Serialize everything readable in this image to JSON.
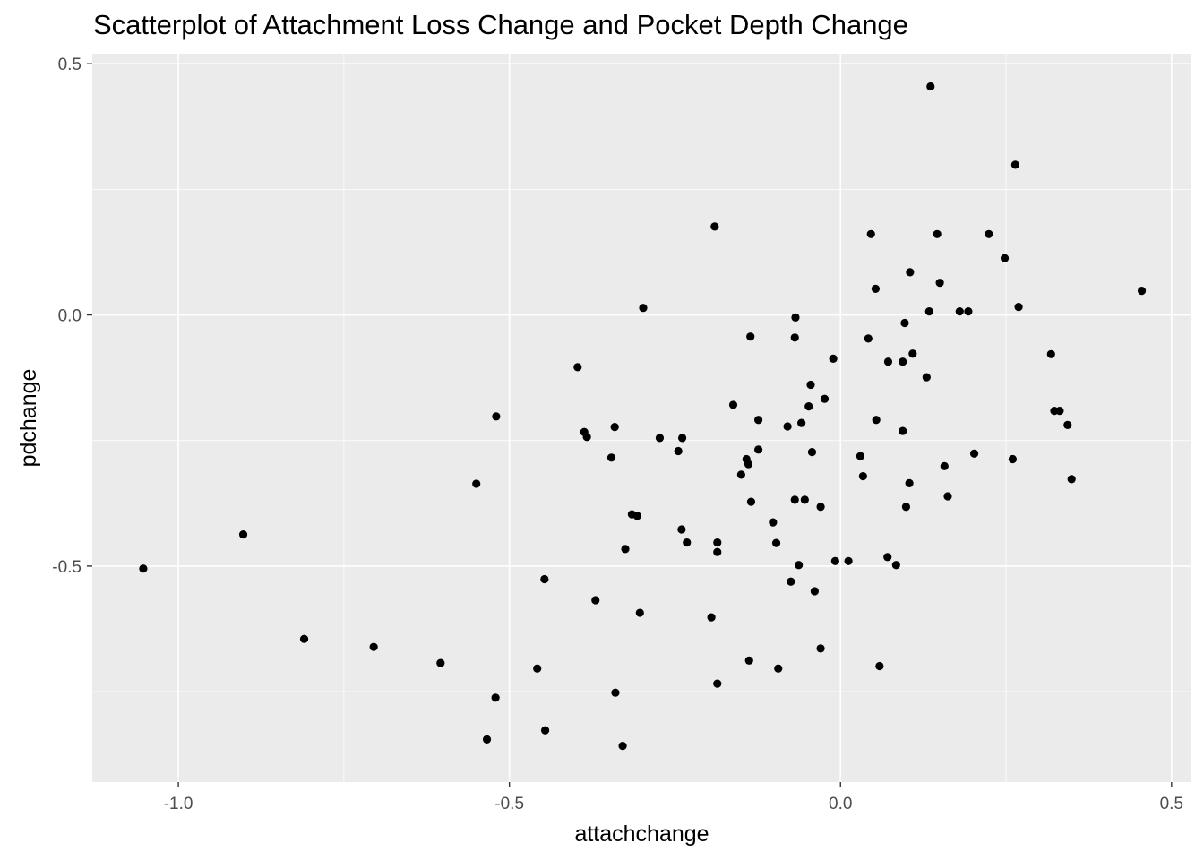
{
  "chart_data": {
    "type": "scatter",
    "title": "Scatterplot of Attachment Loss Change and Pocket Depth Change",
    "xlabel": "attachchange",
    "ylabel": "pdchange",
    "xlim": [
      -1.13,
      0.53
    ],
    "ylim": [
      -0.93,
      0.52
    ],
    "x_ticks": [
      -1.0,
      -0.5,
      0.0,
      0.5
    ],
    "x_tick_labels": [
      "-1.0",
      "-0.5",
      "0.0",
      "0.5"
    ],
    "y_ticks": [
      -0.5,
      0.0,
      0.5
    ],
    "y_tick_labels": [
      "-0.5",
      "0.0",
      "0.5"
    ],
    "grid": true,
    "point_color": "#000000",
    "panel_background": "#ebebeb",
    "grid_color": "#ffffff",
    "points": [
      [
        0.136,
        0.455
      ],
      [
        0.264,
        0.299
      ],
      [
        -0.19,
        0.176
      ],
      [
        0.046,
        0.161
      ],
      [
        0.146,
        0.161
      ],
      [
        0.224,
        0.161
      ],
      [
        0.248,
        0.113
      ],
      [
        0.105,
        0.085
      ],
      [
        0.15,
        0.064
      ],
      [
        0.053,
        0.052
      ],
      [
        0.455,
        0.048
      ],
      [
        0.269,
        0.016
      ],
      [
        -0.298,
        0.014
      ],
      [
        0.134,
        0.007
      ],
      [
        0.18,
        0.007
      ],
      [
        0.193,
        0.007
      ],
      [
        -0.068,
        -0.005
      ],
      [
        0.097,
        -0.016
      ],
      [
        -0.136,
        -0.043
      ],
      [
        -0.069,
        -0.045
      ],
      [
        0.042,
        -0.047
      ],
      [
        0.109,
        -0.077
      ],
      [
        0.318,
        -0.078
      ],
      [
        -0.011,
        -0.087
      ],
      [
        0.072,
        -0.093
      ],
      [
        0.094,
        -0.093
      ],
      [
        -0.397,
        -0.104
      ],
      [
        0.13,
        -0.124
      ],
      [
        -0.045,
        -0.139
      ],
      [
        -0.024,
        -0.167
      ],
      [
        -0.162,
        -0.179
      ],
      [
        -0.048,
        -0.182
      ],
      [
        -0.52,
        -0.202
      ],
      [
        -0.124,
        -0.209
      ],
      [
        0.054,
        -0.209
      ],
      [
        0.323,
        -0.191
      ],
      [
        0.331,
        -0.191
      ],
      [
        -0.059,
        -0.215
      ],
      [
        -0.08,
        -0.222
      ],
      [
        -0.341,
        -0.223
      ],
      [
        0.343,
        -0.219
      ],
      [
        -0.387,
        -0.233
      ],
      [
        0.094,
        -0.231
      ],
      [
        -0.383,
        -0.243
      ],
      [
        -0.273,
        -0.245
      ],
      [
        -0.239,
        -0.245
      ],
      [
        -0.245,
        -0.271
      ],
      [
        -0.043,
        -0.273
      ],
      [
        0.202,
        -0.276
      ],
      [
        -0.124,
        -0.268
      ],
      [
        -0.142,
        -0.287
      ],
      [
        0.03,
        -0.281
      ],
      [
        -0.346,
        -0.284
      ],
      [
        0.26,
        -0.287
      ],
      [
        -0.139,
        -0.297
      ],
      [
        0.157,
        -0.301
      ],
      [
        -0.15,
        -0.318
      ],
      [
        0.034,
        -0.321
      ],
      [
        0.349,
        -0.327
      ],
      [
        -0.55,
        -0.336
      ],
      [
        0.104,
        -0.335
      ],
      [
        0.162,
        -0.361
      ],
      [
        -0.069,
        -0.368
      ],
      [
        -0.054,
        -0.368
      ],
      [
        -0.135,
        -0.372
      ],
      [
        -0.03,
        -0.382
      ],
      [
        0.099,
        -0.382
      ],
      [
        -0.315,
        -0.397
      ],
      [
        -0.307,
        -0.4
      ],
      [
        -0.102,
        -0.413
      ],
      [
        -0.24,
        -0.427
      ],
      [
        -0.902,
        -0.437
      ],
      [
        -0.232,
        -0.453
      ],
      [
        -0.186,
        -0.453
      ],
      [
        -0.097,
        -0.454
      ],
      [
        -0.325,
        -0.466
      ],
      [
        -0.186,
        -0.472
      ],
      [
        0.071,
        -0.482
      ],
      [
        -0.008,
        -0.49
      ],
      [
        0.012,
        -0.49
      ],
      [
        0.084,
        -0.498
      ],
      [
        -0.063,
        -0.498
      ],
      [
        -1.053,
        -0.505
      ],
      [
        -0.447,
        -0.526
      ],
      [
        -0.075,
        -0.531
      ],
      [
        -0.039,
        -0.55
      ],
      [
        -0.37,
        -0.568
      ],
      [
        -0.303,
        -0.593
      ],
      [
        -0.195,
        -0.602
      ],
      [
        -0.81,
        -0.645
      ],
      [
        -0.705,
        -0.661
      ],
      [
        -0.03,
        -0.664
      ],
      [
        -0.604,
        -0.693
      ],
      [
        -0.138,
        -0.688
      ],
      [
        -0.458,
        -0.704
      ],
      [
        -0.094,
        -0.704
      ],
      [
        0.059,
        -0.699
      ],
      [
        -0.186,
        -0.734
      ],
      [
        -0.34,
        -0.752
      ],
      [
        -0.521,
        -0.762
      ],
      [
        -0.446,
        -0.827
      ],
      [
        -0.534,
        -0.845
      ],
      [
        -0.329,
        -0.858
      ]
    ]
  }
}
